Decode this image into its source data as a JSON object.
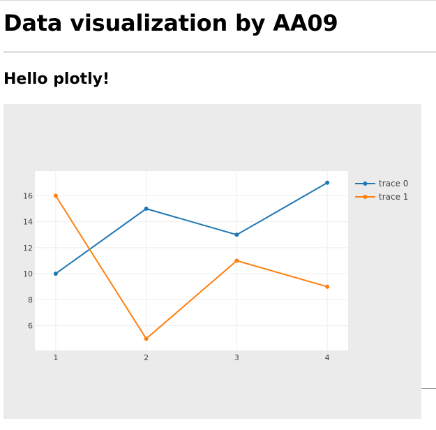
{
  "page": {
    "title": "Data visualization by AA09",
    "subtitle": "Hello plotly!"
  },
  "chart_data": {
    "type": "line",
    "title": "",
    "xlabel": "",
    "ylabel": "",
    "xlim": [
      0.77,
      4.23
    ],
    "ylim": [
      4.1,
      17.9
    ],
    "x_ticks": [
      1,
      2,
      3,
      4
    ],
    "y_ticks": [
      6,
      8,
      10,
      12,
      14,
      16
    ],
    "grid": true,
    "legend_position": "top-right",
    "paper_color": "#ebebeb",
    "plot_color": "#ffffff",
    "series": [
      {
        "name": "trace 0",
        "color": "#1f77b4",
        "x": [
          1,
          2,
          3,
          4
        ],
        "y": [
          10,
          15,
          13,
          17
        ]
      },
      {
        "name": "trace 1",
        "color": "#ff7f0e",
        "x": [
          1,
          2,
          3,
          4
        ],
        "y": [
          16,
          5,
          11,
          9
        ]
      }
    ]
  }
}
